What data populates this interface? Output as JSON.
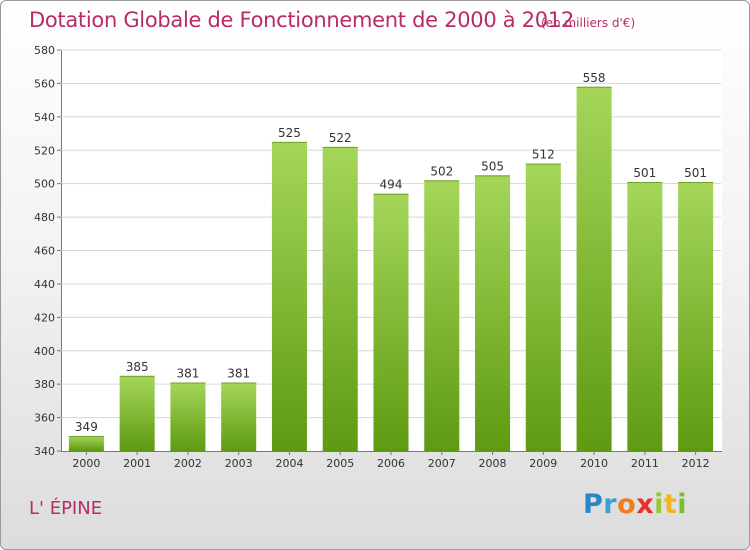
{
  "header": {
    "title": "Dotation Globale de Fonctionnement de 2000 à 2012",
    "subtitle": "(en milliers d'€)"
  },
  "footer": {
    "commune": "L' ÉPINE",
    "logo_letters": [
      "P",
      "r",
      "o",
      "x",
      "i",
      "t",
      "i"
    ]
  },
  "colors": {
    "title": "#b72c67",
    "bar_light": "#a5d65a",
    "bar_dark": "#5e9a12",
    "grid": "#d6d6d6"
  },
  "chart_data": {
    "type": "bar",
    "title": "Dotation Globale de Fonctionnement de 2000 à 2012",
    "subtitle": "(en milliers d'€)",
    "xlabel": "",
    "ylabel": "",
    "categories": [
      "2000",
      "2001",
      "2002",
      "2003",
      "2004",
      "2005",
      "2006",
      "2007",
      "2008",
      "2009",
      "2010",
      "2011",
      "2012"
    ],
    "values": [
      349,
      385,
      381,
      381,
      525,
      522,
      494,
      502,
      505,
      512,
      558,
      501,
      501
    ],
    "ylim": [
      340,
      580
    ],
    "yticks": [
      340,
      360,
      380,
      400,
      420,
      440,
      460,
      480,
      500,
      520,
      540,
      560,
      580
    ],
    "grid": true,
    "data_labels": true,
    "legend": "none"
  }
}
